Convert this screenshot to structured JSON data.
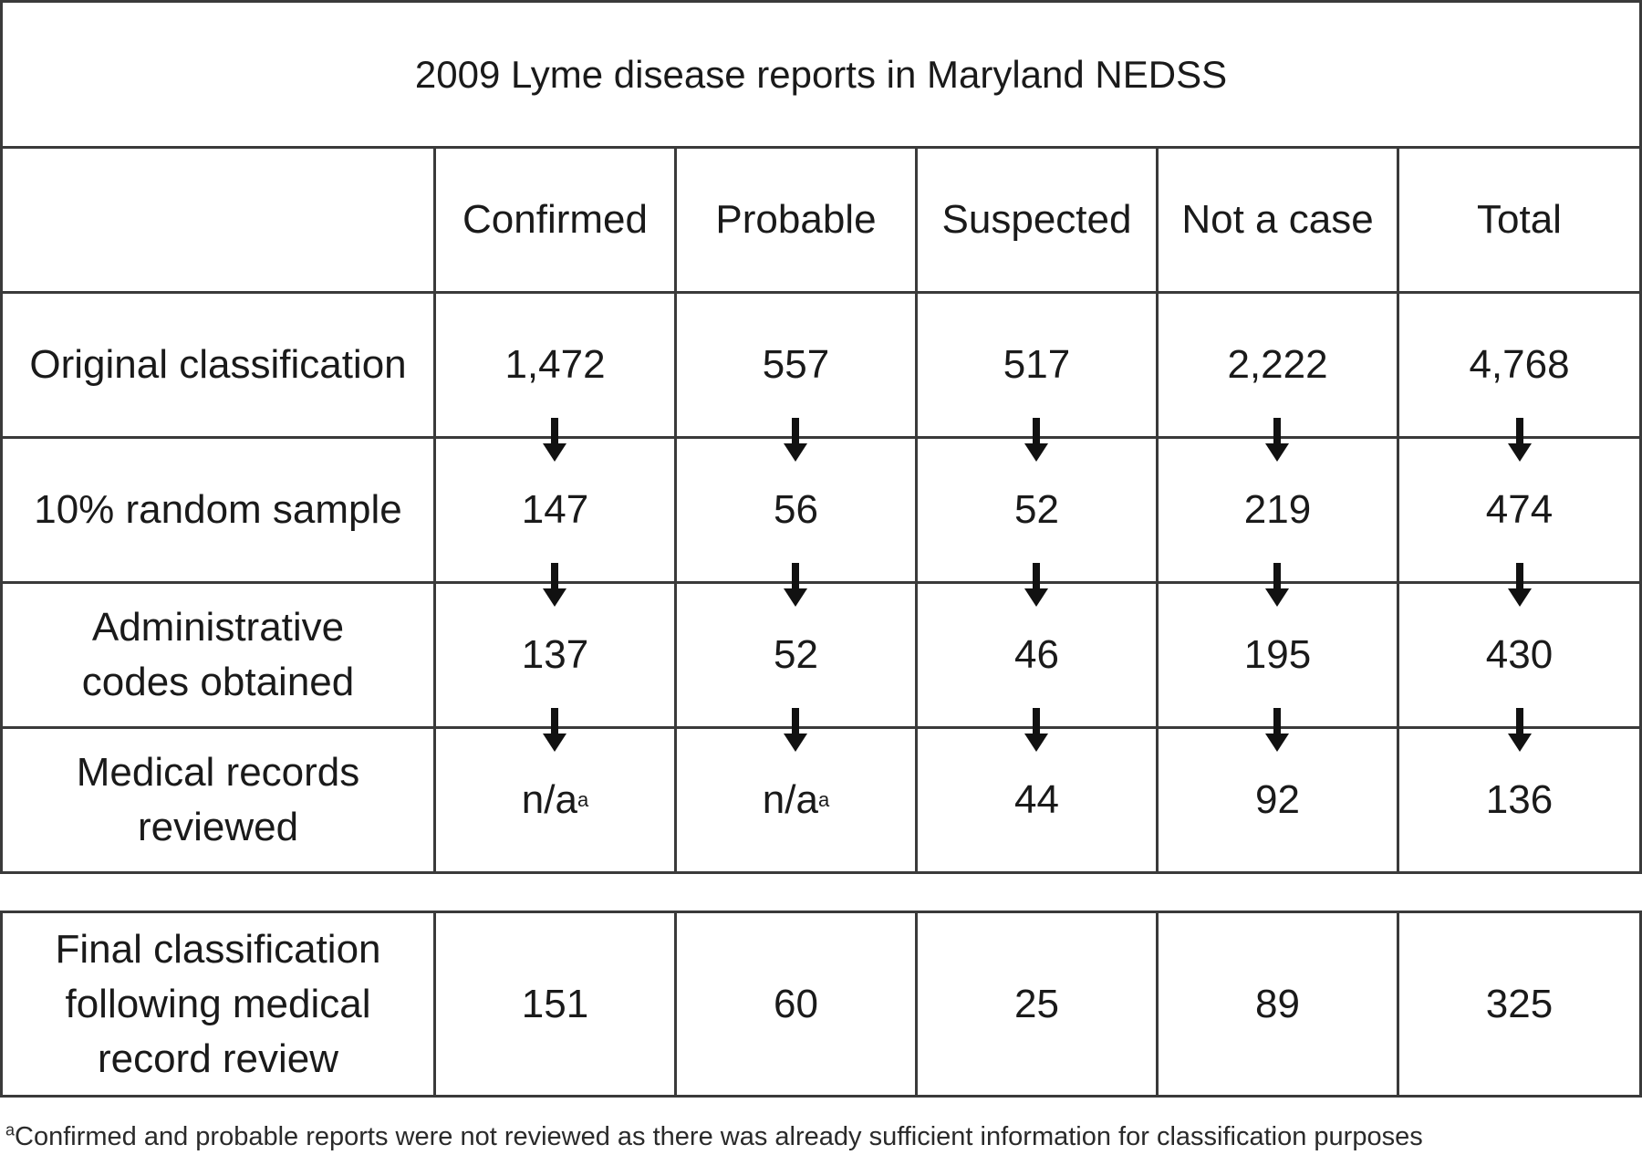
{
  "title": "2009 Lyme disease reports in Maryland NEDSS",
  "columns": [
    "Confirmed",
    "Probable",
    "Suspected",
    "Not a case",
    "Total"
  ],
  "rows": [
    {
      "label": "Original classification",
      "values": [
        "1,472",
        "557",
        "517",
        "2,222",
        "4,768"
      ]
    },
    {
      "label": "10% random sample",
      "values": [
        "147",
        "56",
        "52",
        "219",
        "474"
      ]
    },
    {
      "label": "Administrative codes obtained",
      "values": [
        "137",
        "52",
        "46",
        "195",
        "430"
      ]
    },
    {
      "label": "Medical records reviewed",
      "values": [
        "n/a",
        "n/a",
        "44",
        "92",
        "136"
      ]
    }
  ],
  "footnote_marker": "a",
  "final_row": {
    "label": "Final classification following medical record review",
    "values": [
      "151",
      "60",
      "25",
      "89",
      "325"
    ]
  },
  "footnote": "Confirmed and probable reports were not reviewed as there was already sufficient information for classification purposes",
  "arrow_icon": "down-arrow-icon"
}
